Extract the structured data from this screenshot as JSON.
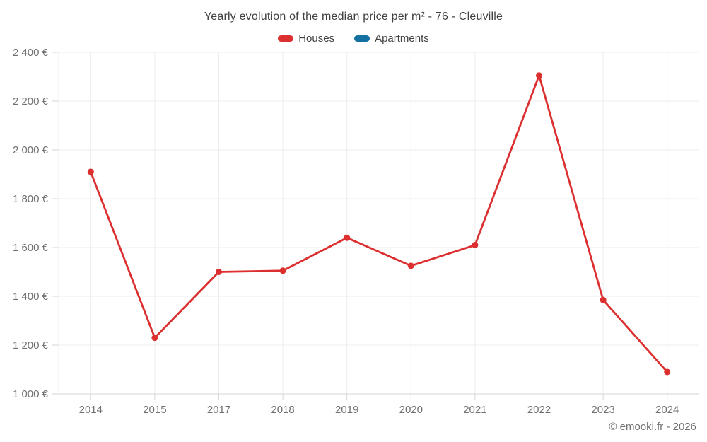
{
  "chart_data": {
    "type": "line",
    "title": "Yearly evolution of the median price per m² - 76 - Cleuville",
    "categories": [
      "2014",
      "2015",
      "2017",
      "2018",
      "2019",
      "2020",
      "2021",
      "2022",
      "2023",
      "2024"
    ],
    "series": [
      {
        "name": "Houses",
        "color": "#dc2f2f",
        "values": [
          1910,
          1230,
          1500,
          1505,
          1640,
          1525,
          1610,
          2305,
          1385,
          1090
        ]
      },
      {
        "name": "Apartments",
        "color": "#1470a0",
        "values": []
      }
    ],
    "xlabel": "",
    "ylabel": "",
    "ylim": [
      1000,
      2400
    ],
    "y_ticks": [
      1000,
      1200,
      1400,
      1600,
      1800,
      2000,
      2200,
      2400
    ],
    "y_tick_labels": [
      "1 000 €",
      "1 200 €",
      "1 400 €",
      "1 600 €",
      "1 800 €",
      "2 000 €",
      "2 200 €",
      "2 400 €"
    ],
    "grid": true,
    "legend_position": "top"
  },
  "footer": {
    "text": "© emooki.fr - 2026"
  },
  "colors": {
    "grid": "#ececec",
    "axis": "#d6d6d6",
    "tick_text": "#707070",
    "title_text": "#404040"
  }
}
